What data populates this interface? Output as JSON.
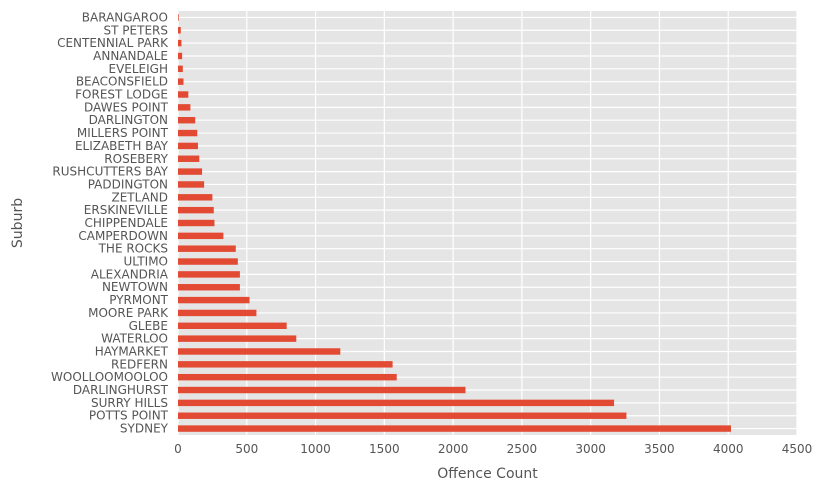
{
  "chart_data": {
    "type": "bar",
    "orientation": "horizontal",
    "style": "ggplot",
    "xlabel": "Offence Count",
    "ylabel": "Suburb",
    "xlim": [
      0,
      4500
    ],
    "xticks": [
      0,
      500,
      1000,
      1500,
      2000,
      2500,
      3000,
      3500,
      4000,
      4500
    ],
    "grid": true,
    "colors": {
      "bar": "#E24A33",
      "background": "#E5E5E5",
      "grid": "#FFFFFF",
      "text": "#555555"
    },
    "categories": [
      "SYDNEY",
      "POTTS POINT",
      "SURRY HILLS",
      "DARLINGHURST",
      "WOOLLOOMOOLOO",
      "REDFERN",
      "HAYMARKET",
      "WATERLOO",
      "GLEBE",
      "MOORE PARK",
      "PYRMONT",
      "NEWTOWN",
      "ALEXANDRIA",
      "ULTIMO",
      "THE ROCKS",
      "CAMPERDOWN",
      "CHIPPENDALE",
      "ERSKINEVILLE",
      "ZETLAND",
      "PADDINGTON",
      "RUSHCUTTERS BAY",
      "ROSEBERY",
      "ELIZABETH BAY",
      "MILLERS POINT",
      "DARLINGTON",
      "DAWES POINT",
      "FOREST LODGE",
      "BEACONSFIELD",
      "EVELEIGH",
      "ANNANDALE",
      "CENTENNIAL PARK",
      "ST PETERS",
      "BARANGAROO"
    ],
    "values": [
      4020,
      3260,
      3170,
      2090,
      1590,
      1560,
      1180,
      860,
      790,
      570,
      520,
      450,
      450,
      435,
      420,
      330,
      265,
      260,
      250,
      190,
      175,
      155,
      145,
      140,
      125,
      90,
      75,
      40,
      35,
      30,
      25,
      20,
      5
    ]
  }
}
